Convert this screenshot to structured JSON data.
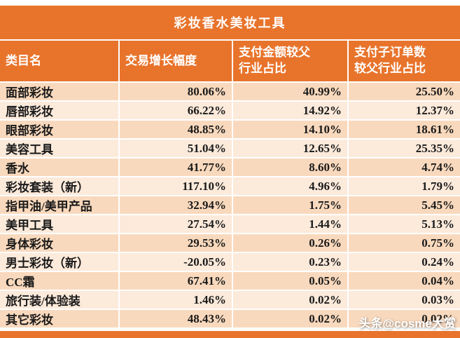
{
  "title": "彩妆香水美妆工具",
  "watermark": "头条@cosme大赏",
  "colors": {
    "accent_orange": "#E8742C",
    "row_odd": "#F9D9BD",
    "row_even": "#FCEADB",
    "header_text": "#ffffff",
    "body_text": "#1a1a1a"
  },
  "chart_data": {
    "type": "table",
    "title": "彩妆香水美妆工具",
    "columns": [
      "类目名",
      "交易增长幅度",
      "支付金额较父行业占比",
      "支付子订单数较父行业占比"
    ],
    "header_display": [
      "类目名",
      "交易增长幅度",
      "支付金额较父\n行业占比",
      "支付子订单数\n较父行业占比"
    ],
    "rows": [
      [
        "面部彩妆",
        "80.06%",
        "40.99%",
        "25.50%"
      ],
      [
        "唇部彩妆",
        "66.22%",
        "14.92%",
        "12.37%"
      ],
      [
        "眼部彩妆",
        "48.85%",
        "14.10%",
        "18.61%"
      ],
      [
        "美容工具",
        "51.04%",
        "12.65%",
        "25.35%"
      ],
      [
        "香水",
        "41.77%",
        "8.60%",
        "4.74%"
      ],
      [
        "彩妆套装（新）",
        "117.10%",
        "4.96%",
        "1.79%"
      ],
      [
        "指甲油/美甲产品",
        "32.94%",
        "1.75%",
        "5.45%"
      ],
      [
        "美甲工具",
        "27.54%",
        "1.44%",
        "5.13%"
      ],
      [
        "身体彩妆",
        "29.53%",
        "0.26%",
        "0.75%"
      ],
      [
        "男士彩妆（新）",
        "-20.05%",
        "0.23%",
        "0.24%"
      ],
      [
        "CC霜",
        "67.41%",
        "0.05%",
        "0.04%"
      ],
      [
        "旅行装/体验装",
        "1.46%",
        "0.02%",
        "0.03%"
      ],
      [
        "其它彩妆",
        "48.43%",
        "0.02%",
        "0.02%"
      ]
    ]
  }
}
